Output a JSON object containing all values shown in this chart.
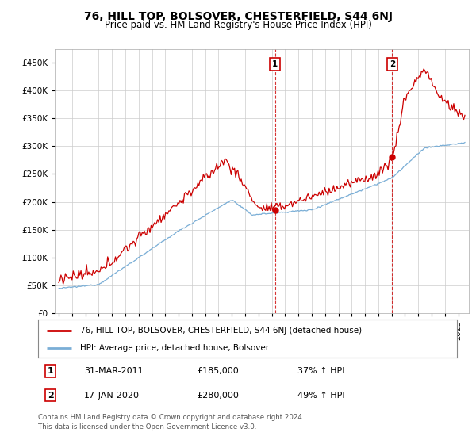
{
  "title": "76, HILL TOP, BOLSOVER, CHESTERFIELD, S44 6NJ",
  "subtitle": "Price paid vs. HM Land Registry's House Price Index (HPI)",
  "ylim": [
    0,
    475000
  ],
  "yticks": [
    0,
    50000,
    100000,
    150000,
    200000,
    250000,
    300000,
    350000,
    400000,
    450000
  ],
  "xlim_start": 1994.7,
  "xlim_end": 2025.8,
  "marker1_x": 2011.24,
  "marker1_y": 185000,
  "marker1_label": "1",
  "marker2_x": 2020.05,
  "marker2_y": 280000,
  "marker2_label": "2",
  "legend_line1": "76, HILL TOP, BOLSOVER, CHESTERFIELD, S44 6NJ (detached house)",
  "legend_line2": "HPI: Average price, detached house, Bolsover",
  "table_row1": [
    "1",
    "31-MAR-2011",
    "£185,000",
    "37% ↑ HPI"
  ],
  "table_row2": [
    "2",
    "17-JAN-2020",
    "£280,000",
    "49% ↑ HPI"
  ],
  "footnote": "Contains HM Land Registry data © Crown copyright and database right 2024.\nThis data is licensed under the Open Government Licence v3.0.",
  "red_color": "#cc0000",
  "blue_color": "#7aaed6",
  "background_color": "#ffffff",
  "grid_color": "#cccccc",
  "title_fontsize": 10,
  "subtitle_fontsize": 8.5
}
